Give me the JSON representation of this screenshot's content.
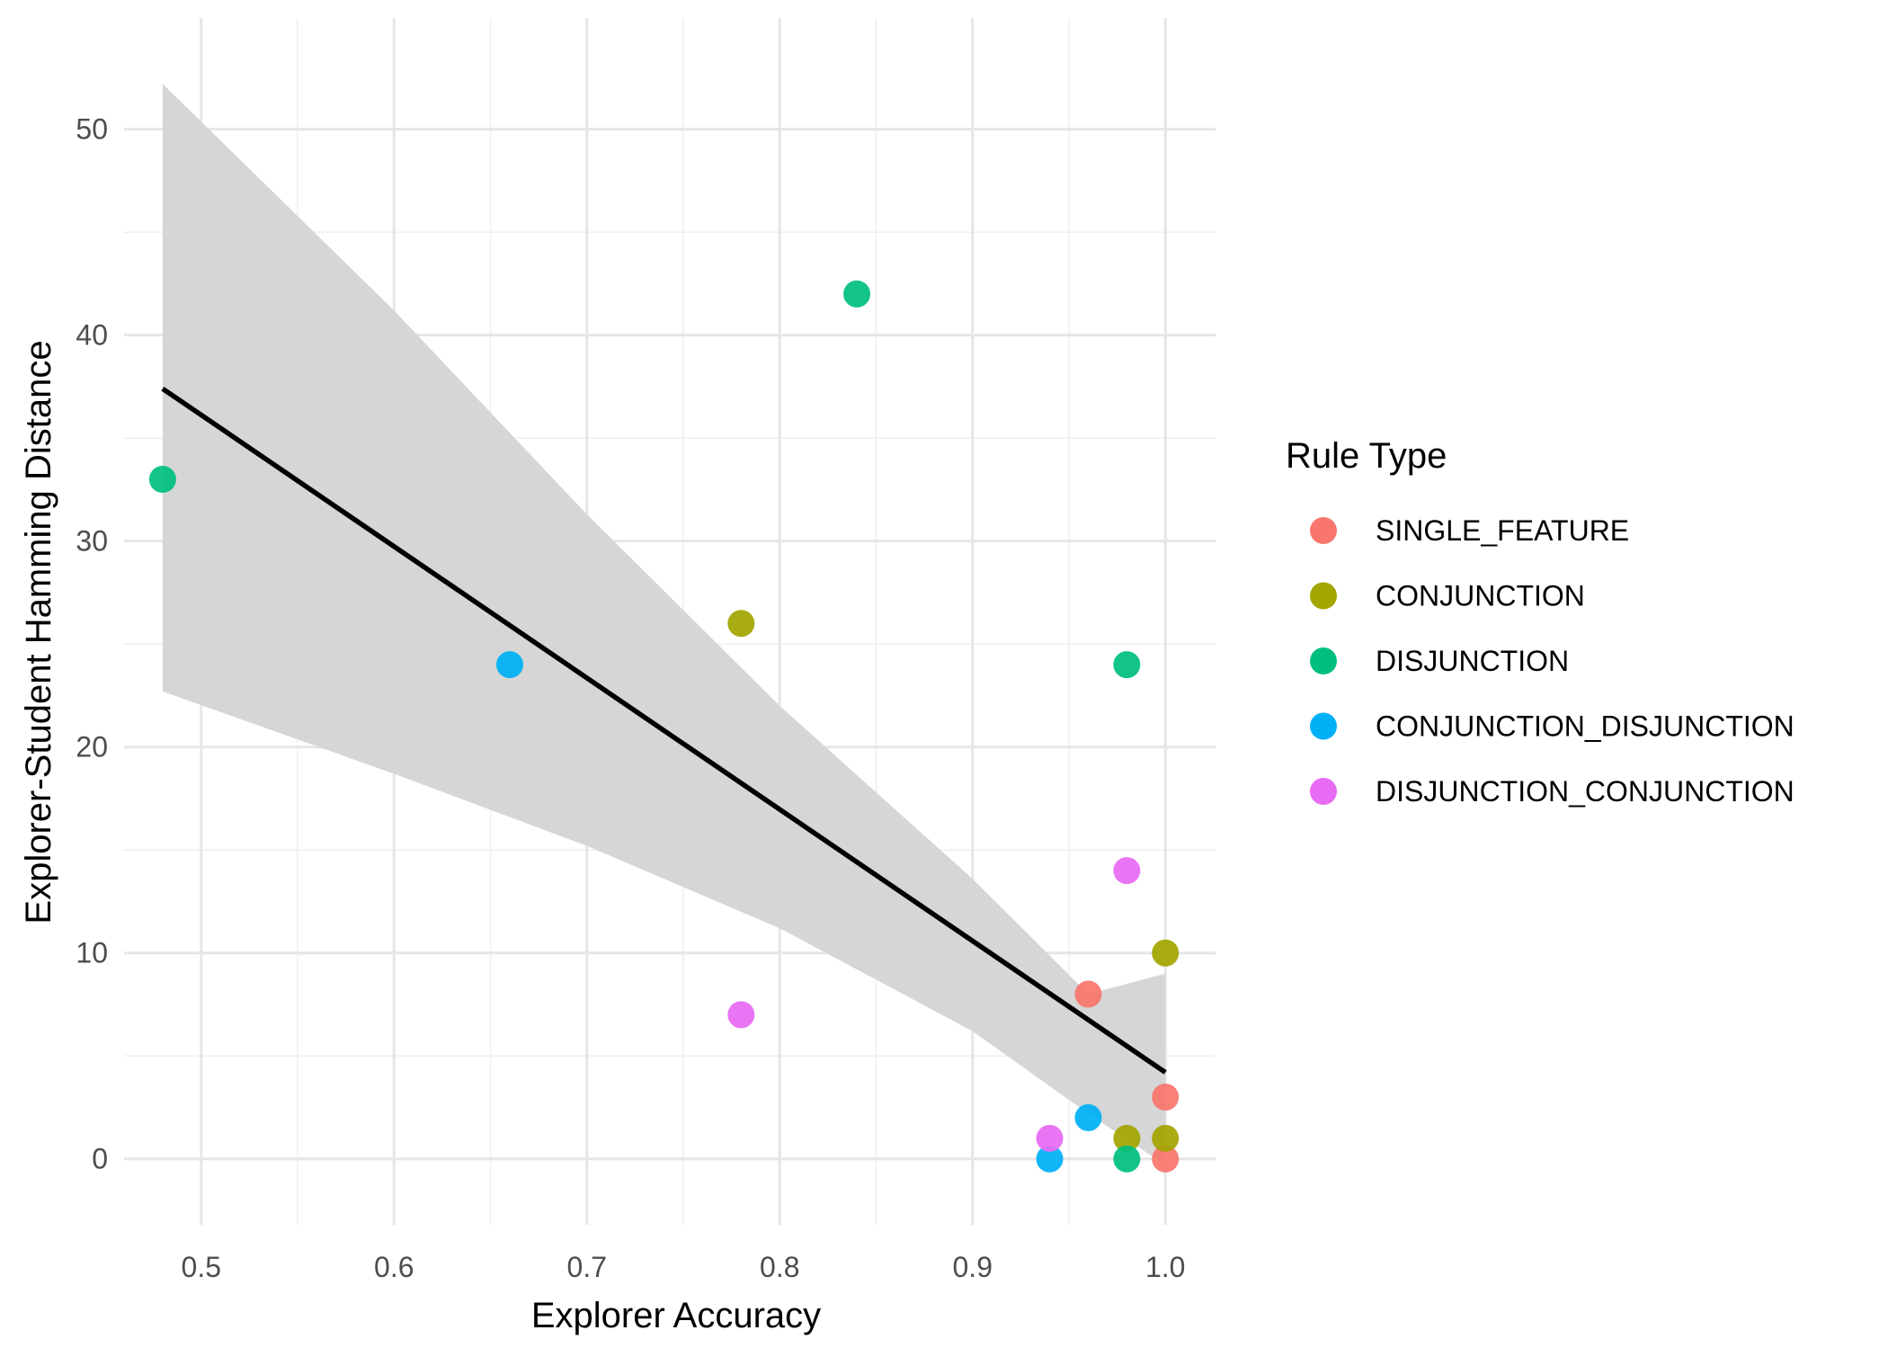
{
  "chart_data": {
    "type": "scatter",
    "title": "",
    "xlabel": "Explorer Accuracy",
    "ylabel": "Explorer-Student Hamming Distance",
    "xlim": [
      0.46,
      1.026
    ],
    "ylim": [
      -3.2,
      55.4
    ],
    "x_ticks": [
      0.5,
      0.6,
      0.7,
      0.8,
      0.9,
      1.0
    ],
    "x_tick_labels": [
      "0.5",
      "0.6",
      "0.7",
      "0.8",
      "0.9",
      "1.0"
    ],
    "y_ticks": [
      0,
      10,
      20,
      30,
      40,
      50
    ],
    "y_tick_labels": [
      "0",
      "10",
      "20",
      "30",
      "40",
      "50"
    ],
    "grid": true,
    "legend": {
      "title": "Rule Type",
      "position": "right"
    },
    "series": [
      {
        "name": "SINGLE_FEATURE",
        "color": "#F8766D",
        "points": [
          [
            0.96,
            8
          ],
          [
            1.0,
            3
          ],
          [
            1.0,
            0
          ]
        ]
      },
      {
        "name": "CONJUNCTION",
        "color": "#A3A500",
        "points": [
          [
            0.78,
            26
          ],
          [
            1.0,
            10
          ],
          [
            0.98,
            1
          ],
          [
            1.0,
            1
          ]
        ]
      },
      {
        "name": "DISJUNCTION",
        "color": "#00BF7D",
        "points": [
          [
            0.48,
            33
          ],
          [
            0.84,
            42
          ],
          [
            0.98,
            24
          ],
          [
            0.98,
            0
          ]
        ]
      },
      {
        "name": "CONJUNCTION_DISJUNCTION",
        "color": "#00B0F6",
        "points": [
          [
            0.66,
            24
          ],
          [
            0.96,
            2
          ],
          [
            0.94,
            0
          ]
        ]
      },
      {
        "name": "DISJUNCTION_CONJUNCTION",
        "color": "#E76BF3",
        "points": [
          [
            0.98,
            14
          ],
          [
            0.78,
            7
          ],
          [
            0.94,
            1
          ]
        ]
      }
    ],
    "regression": {
      "method": "linear",
      "color": "#000000",
      "ribbon_color": "#d6d6d6",
      "line": [
        [
          0.48,
          37.4
        ],
        [
          1.0,
          4.2
        ]
      ],
      "ribbon": [
        [
          0.48,
          22.7,
          52.2
        ],
        [
          0.6,
          18.7,
          41.2
        ],
        [
          0.7,
          15.2,
          31.3
        ],
        [
          0.8,
          11.2,
          22.0
        ],
        [
          0.9,
          6.2,
          13.6
        ],
        [
          0.96,
          2.2,
          8.0
        ],
        [
          1.0,
          -0.3,
          9.0
        ]
      ]
    }
  }
}
